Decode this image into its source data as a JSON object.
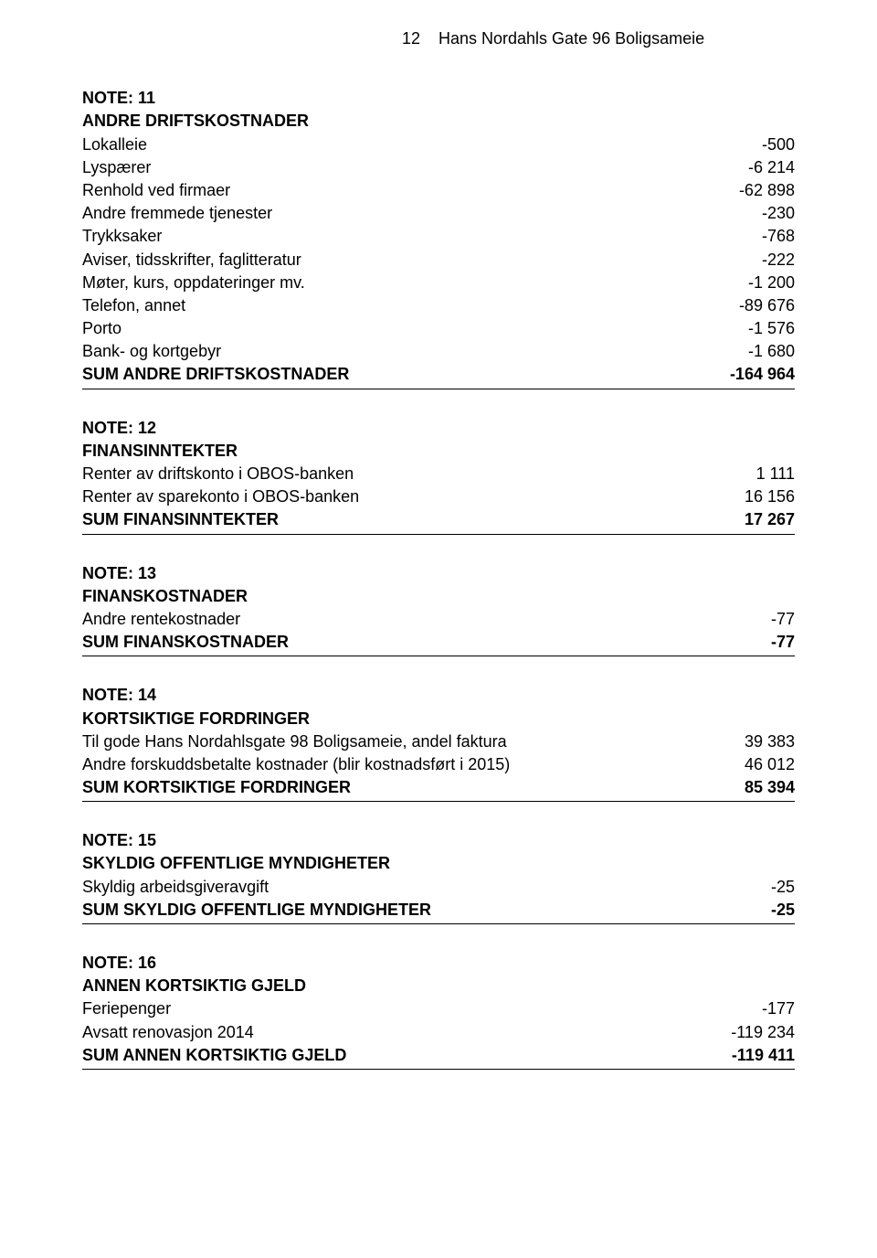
{
  "header": {
    "page_number": "12",
    "doc_title": "Hans Nordahls Gate 96 Boligsameie"
  },
  "notes": [
    {
      "id": "NOTE: 11",
      "title": "ANDRE DRIFTSKOSTNADER",
      "rows": [
        {
          "label": "Lokalleie",
          "value": "-500"
        },
        {
          "label": "Lyspærer",
          "value": "-6 214"
        },
        {
          "label": "Renhold ved firmaer",
          "value": "-62 898"
        },
        {
          "label": "Andre fremmede tjenester",
          "value": "-230"
        },
        {
          "label": "Trykksaker",
          "value": "-768"
        },
        {
          "label": "Aviser, tidsskrifter, faglitteratur",
          "value": "-222"
        },
        {
          "label": "Møter, kurs, oppdateringer mv.",
          "value": "-1 200"
        },
        {
          "label": "Telefon, annet",
          "value": "-89 676"
        },
        {
          "label": "Porto",
          "value": "-1 576"
        },
        {
          "label": "Bank- og kortgebyr",
          "value": "-1 680"
        }
      ],
      "sum": {
        "label": "SUM ANDRE DRIFTSKOSTNADER",
        "value": "-164 964"
      }
    },
    {
      "id": "NOTE: 12",
      "title": "FINANSINNTEKTER",
      "rows": [
        {
          "label": "Renter av driftskonto i OBOS-banken",
          "value": "1 111"
        },
        {
          "label": "Renter av sparekonto i OBOS-banken",
          "value": "16 156"
        }
      ],
      "sum": {
        "label": "SUM FINANSINNTEKTER",
        "value": "17 267"
      }
    },
    {
      "id": "NOTE: 13",
      "title": "FINANSKOSTNADER",
      "rows": [
        {
          "label": "Andre rentekostnader",
          "value": "-77"
        }
      ],
      "sum": {
        "label": "SUM FINANSKOSTNADER",
        "value": "-77"
      }
    },
    {
      "id": "NOTE: 14",
      "title": "KORTSIKTIGE FORDRINGER",
      "rows": [
        {
          "label": "Til gode Hans Nordahlsgate 98 Boligsameie, andel faktura",
          "value": "39 383"
        },
        {
          "label": "Andre forskuddsbetalte kostnader (blir kostnadsført i 2015)",
          "value": "46 012"
        }
      ],
      "sum": {
        "label": "SUM KORTSIKTIGE FORDRINGER",
        "value": "85 394"
      }
    },
    {
      "id": "NOTE: 15",
      "title": "SKYLDIG OFFENTLIGE MYNDIGHETER",
      "rows": [
        {
          "label": "Skyldig arbeidsgiveravgift",
          "value": "-25"
        }
      ],
      "sum": {
        "label": "SUM SKYLDIG OFFENTLIGE MYNDIGHETER",
        "value": "-25"
      }
    },
    {
      "id": "NOTE: 16",
      "title": "ANNEN KORTSIKTIG GJELD",
      "rows": [
        {
          "label": "Feriepenger",
          "value": "-177"
        },
        {
          "label": "Avsatt renovasjon 2014",
          "value": "-119 234"
        }
      ],
      "sum": {
        "label": "SUM ANNEN KORTSIKTIG GJELD",
        "value": "-119 411"
      }
    }
  ]
}
